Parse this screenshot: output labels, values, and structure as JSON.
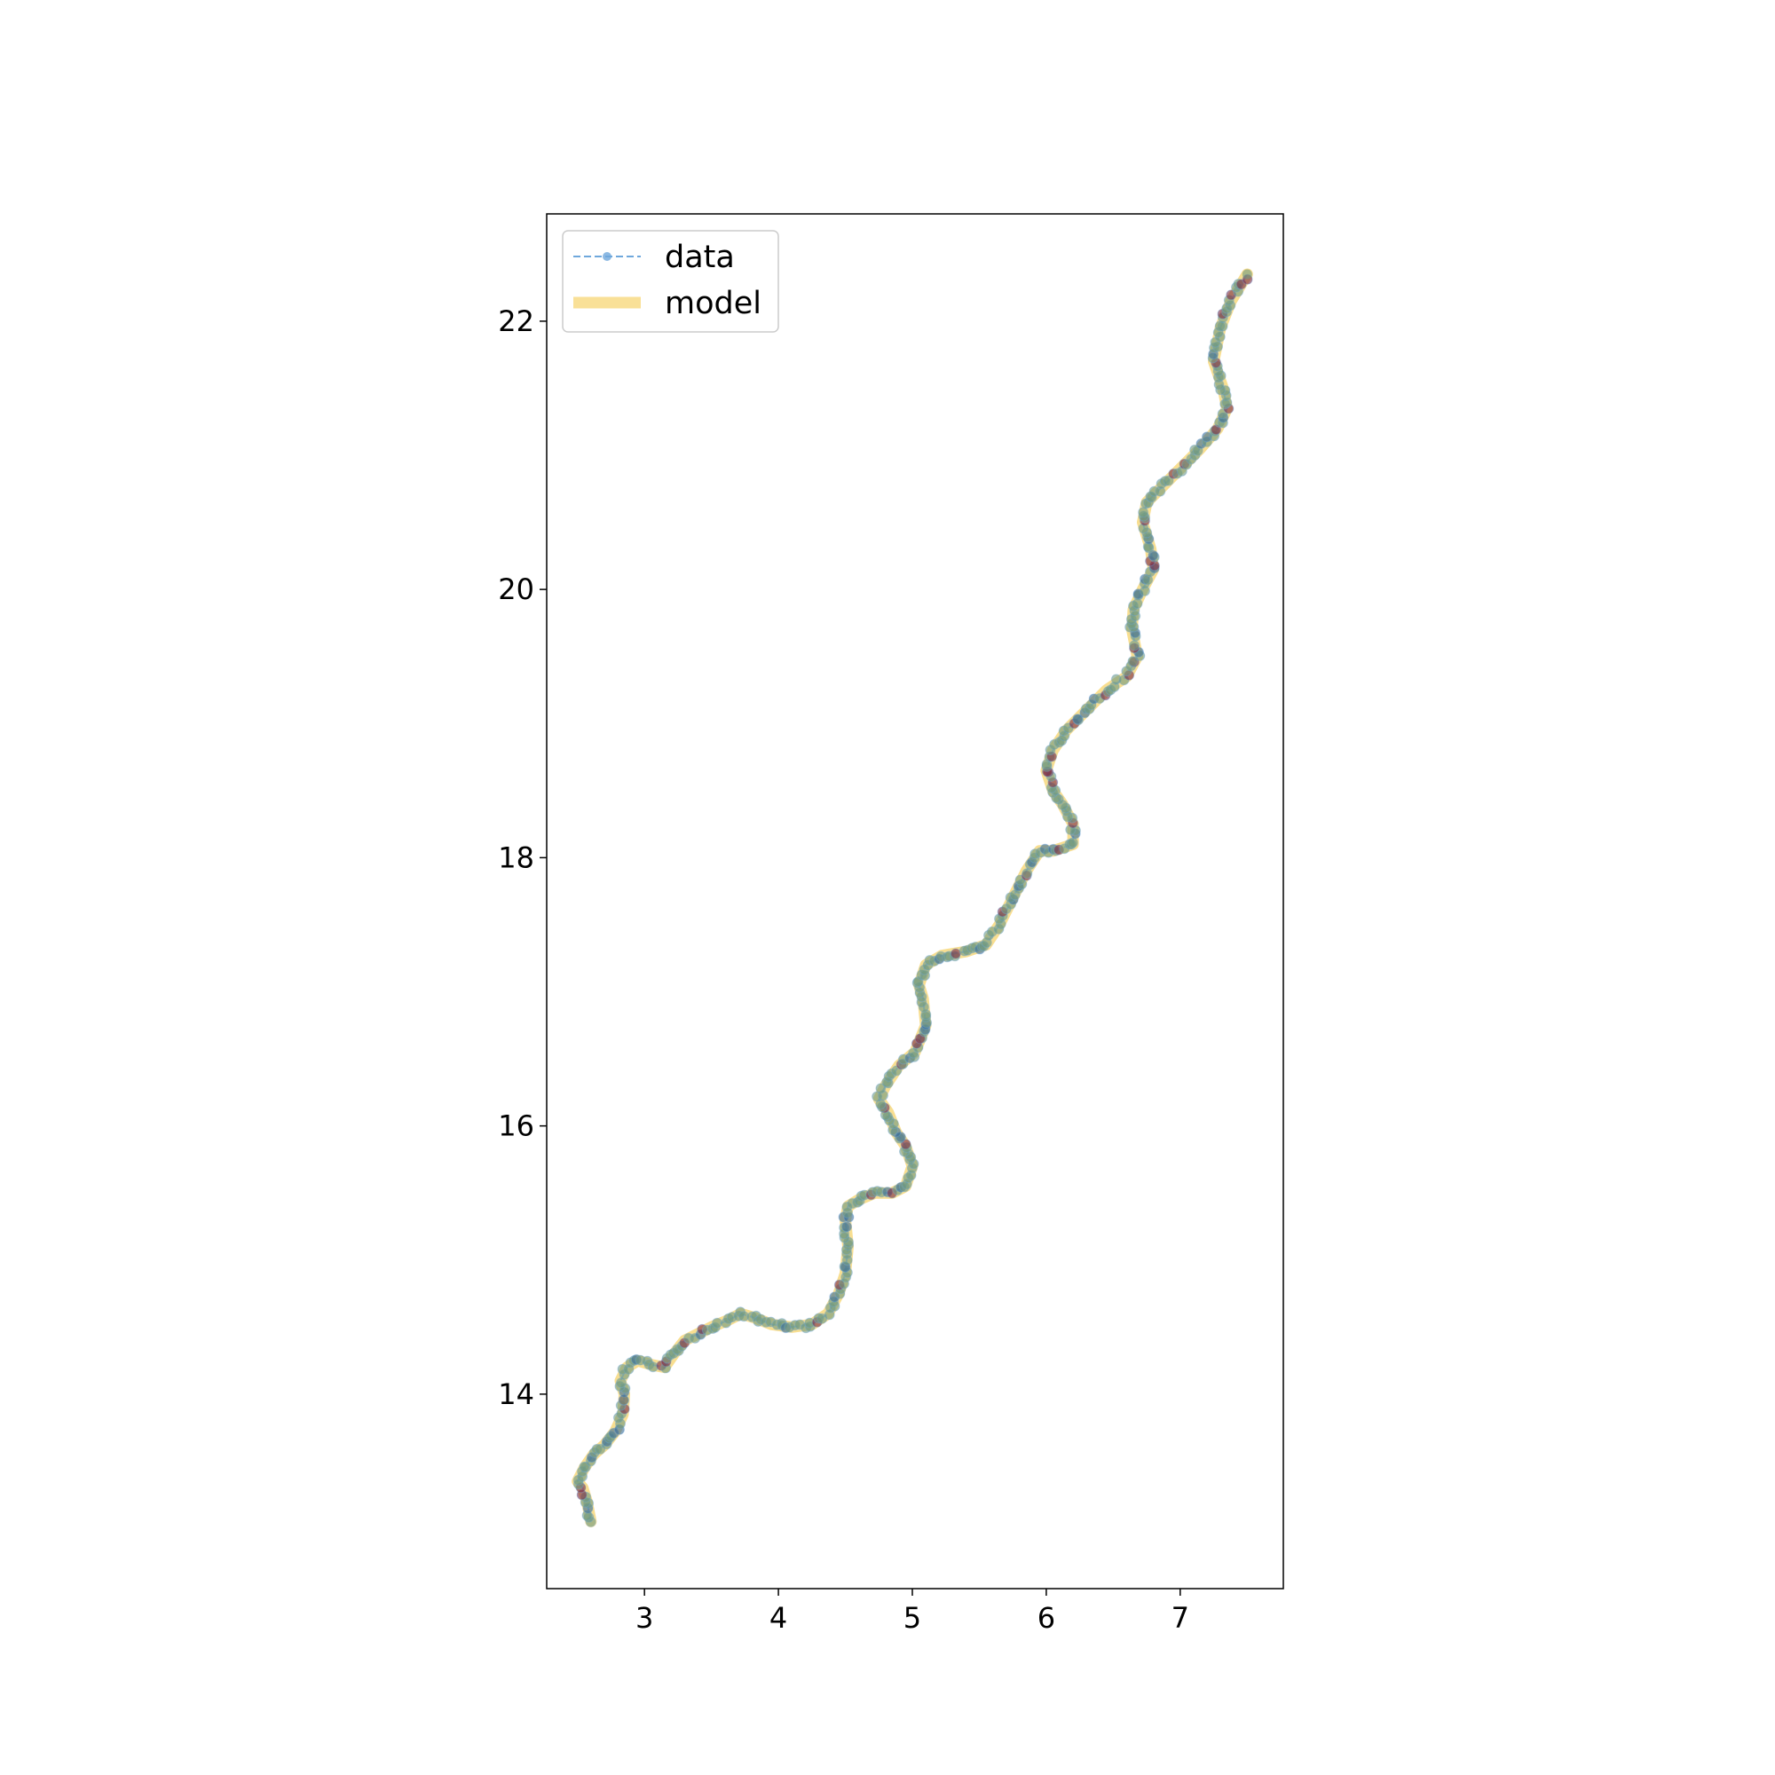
{
  "chart_data": {
    "type": "line",
    "title": "",
    "xlabel": "",
    "ylabel": "",
    "xlim": [
      2.27,
      7.77
    ],
    "ylim": [
      12.55,
      22.8
    ],
    "xticks": [
      3,
      4,
      5,
      6,
      7
    ],
    "yticks": [
      14,
      16,
      18,
      20,
      22
    ],
    "xtick_labels": [
      "3",
      "4",
      "5",
      "6",
      "7"
    ],
    "ytick_labels": [
      "14",
      "16",
      "18",
      "20",
      "22"
    ],
    "grid": false,
    "legend": {
      "placement": "upper-left",
      "entries": [
        {
          "label": "data",
          "style": "dashed line with circle markers",
          "color": "#6fa8dc"
        },
        {
          "label": "model",
          "style": "thick solid line",
          "color": "#f6d36b"
        }
      ]
    },
    "colors": {
      "data_line": "#6fa8dc",
      "model_line": "#f6d36b",
      "marker_main": "#6f9a80",
      "marker_accent_dark": "#7a2a45",
      "marker_accent_blue": "#3a6d96"
    },
    "series": [
      {
        "name": "model",
        "x": [
          2.6,
          2.57,
          2.54,
          2.5,
          2.55,
          2.62,
          2.7,
          2.78,
          2.84,
          2.85,
          2.82,
          2.87,
          2.95,
          3.05,
          3.15,
          3.22,
          3.3,
          3.4,
          3.5,
          3.62,
          3.72,
          3.82,
          3.95,
          4.1,
          4.25,
          4.37,
          4.45,
          4.5,
          4.52,
          4.5,
          4.52,
          4.6,
          4.72,
          4.85,
          4.95,
          5.0,
          4.95,
          4.88,
          4.82,
          4.75,
          4.8,
          4.9,
          5.02,
          5.1,
          5.08,
          5.05,
          5.1,
          5.22,
          5.4,
          5.55,
          5.65,
          5.75,
          5.85,
          5.95,
          6.05,
          6.2,
          6.2,
          6.12,
          6.05,
          6.0,
          6.05,
          6.15,
          6.3,
          6.45,
          6.6,
          6.68,
          6.64,
          6.65,
          6.72,
          6.8,
          6.78,
          6.72,
          6.75,
          6.85,
          7.0,
          7.15,
          7.28,
          7.35,
          7.32,
          7.25,
          7.3,
          7.38,
          7.5
        ],
        "y": [
          13.05,
          13.2,
          13.3,
          13.35,
          13.45,
          13.55,
          13.62,
          13.72,
          13.85,
          14.0,
          14.1,
          14.2,
          14.25,
          14.22,
          14.2,
          14.3,
          14.4,
          14.45,
          14.5,
          14.55,
          14.6,
          14.57,
          14.52,
          14.5,
          14.52,
          14.6,
          14.75,
          14.9,
          15.1,
          15.3,
          15.4,
          15.45,
          15.5,
          15.5,
          15.55,
          15.7,
          15.85,
          15.95,
          16.1,
          16.2,
          16.3,
          16.45,
          16.55,
          16.75,
          16.95,
          17.05,
          17.2,
          17.27,
          17.3,
          17.35,
          17.5,
          17.7,
          17.9,
          18.05,
          18.05,
          18.1,
          18.25,
          18.4,
          18.5,
          18.65,
          18.8,
          18.95,
          19.1,
          19.25,
          19.35,
          19.5,
          19.7,
          19.85,
          20.0,
          20.15,
          20.3,
          20.5,
          20.65,
          20.75,
          20.9,
          21.05,
          21.2,
          21.35,
          21.5,
          21.7,
          21.95,
          22.15,
          22.35
        ]
      },
      {
        "name": "data",
        "x": [
          2.6,
          2.57,
          2.54,
          2.5,
          2.55,
          2.62,
          2.7,
          2.78,
          2.84,
          2.85,
          2.82,
          2.87,
          2.95,
          3.05,
          3.15,
          3.22,
          3.3,
          3.4,
          3.5,
          3.62,
          3.72,
          3.82,
          3.95,
          4.1,
          4.25,
          4.37,
          4.45,
          4.5,
          4.52,
          4.5,
          4.52,
          4.6,
          4.72,
          4.85,
          4.95,
          5.0,
          4.95,
          4.88,
          4.82,
          4.75,
          4.8,
          4.9,
          5.02,
          5.1,
          5.08,
          5.05,
          5.1,
          5.22,
          5.4,
          5.55,
          5.65,
          5.75,
          5.85,
          5.95,
          6.05,
          6.2,
          6.2,
          6.12,
          6.05,
          6.0,
          6.05,
          6.15,
          6.3,
          6.45,
          6.6,
          6.68,
          6.64,
          6.65,
          6.72,
          6.8,
          6.78,
          6.72,
          6.75,
          6.85,
          7.0,
          7.15,
          7.28,
          7.35,
          7.32,
          7.25,
          7.3,
          7.38,
          7.5
        ],
        "y": [
          13.05,
          13.2,
          13.3,
          13.35,
          13.45,
          13.55,
          13.62,
          13.72,
          13.85,
          14.0,
          14.1,
          14.2,
          14.25,
          14.22,
          14.2,
          14.3,
          14.4,
          14.45,
          14.5,
          14.55,
          14.6,
          14.57,
          14.52,
          14.5,
          14.52,
          14.6,
          14.75,
          14.9,
          15.1,
          15.3,
          15.4,
          15.45,
          15.5,
          15.5,
          15.55,
          15.7,
          15.85,
          15.95,
          16.1,
          16.2,
          16.3,
          16.45,
          16.55,
          16.75,
          16.95,
          17.05,
          17.2,
          17.27,
          17.3,
          17.35,
          17.5,
          17.7,
          17.9,
          18.05,
          18.05,
          18.1,
          18.25,
          18.4,
          18.5,
          18.65,
          18.8,
          18.95,
          19.1,
          19.25,
          19.35,
          19.5,
          19.7,
          19.85,
          20.0,
          20.15,
          20.3,
          20.5,
          20.65,
          20.75,
          20.9,
          21.05,
          21.2,
          21.35,
          21.5,
          21.7,
          21.95,
          22.15,
          22.35
        ]
      }
    ]
  }
}
